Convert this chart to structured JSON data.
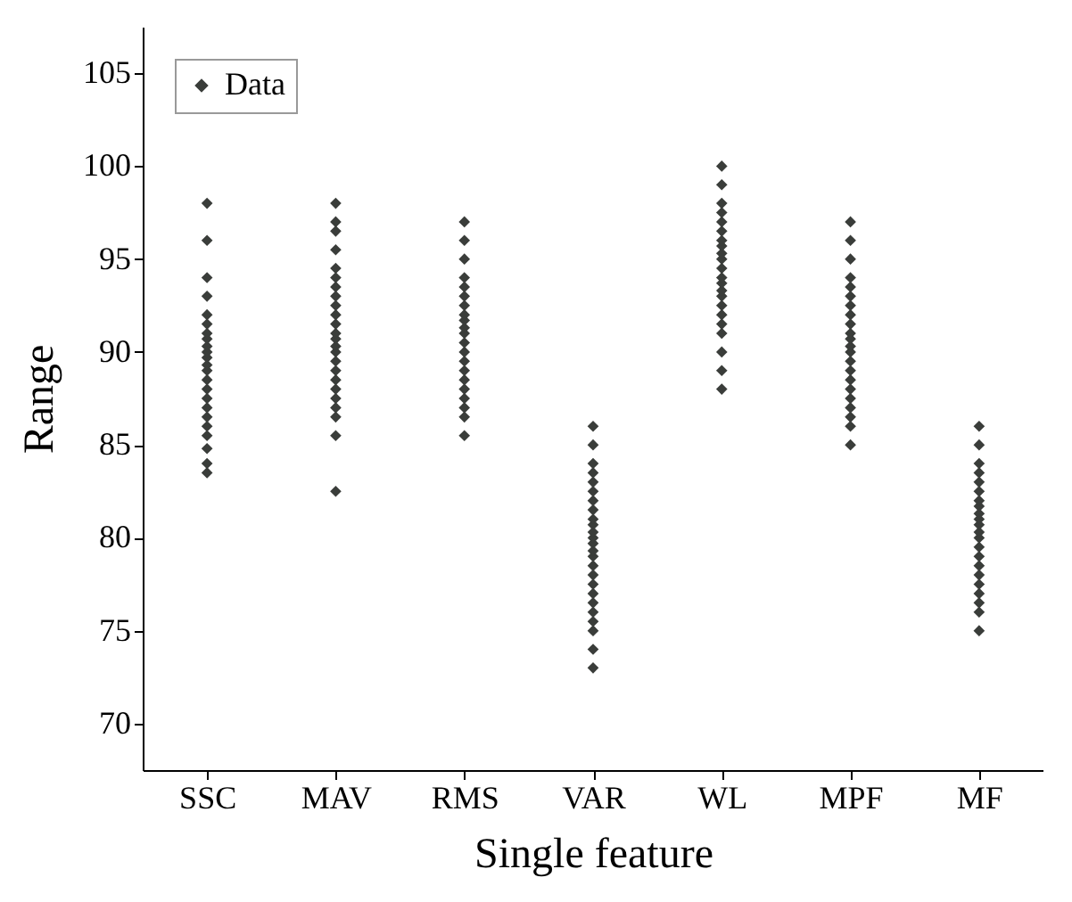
{
  "chart_data": {
    "type": "scatter",
    "xlabel": "Single feature",
    "ylabel": "Range",
    "categories": [
      "SSC",
      "MAV",
      "RMS",
      "VAR",
      "WL",
      "MPF",
      "MF"
    ],
    "ylim": [
      67.5,
      107.5
    ],
    "yticks": [
      70,
      75,
      80,
      85,
      90,
      95,
      100,
      105
    ],
    "legend": "top left",
    "marker": "diamond",
    "grid": false,
    "series": [
      {
        "name": "Data",
        "color": "#3a3d3a",
        "x": [
          "SSC",
          "SSC",
          "SSC",
          "SSC",
          "SSC",
          "SSC",
          "SSC",
          "SSC",
          "SSC",
          "SSC",
          "SSC",
          "SSC",
          "SSC",
          "SSC",
          "SSC",
          "SSC",
          "SSC",
          "SSC",
          "SSC",
          "SSC",
          "SSC",
          "SSC",
          "SSC",
          "MAV",
          "MAV",
          "MAV",
          "MAV",
          "MAV",
          "MAV",
          "MAV",
          "MAV",
          "MAV",
          "MAV",
          "MAV",
          "MAV",
          "MAV",
          "MAV",
          "MAV",
          "MAV",
          "MAV",
          "MAV",
          "MAV",
          "MAV",
          "MAV",
          "MAV",
          "MAV",
          "MAV",
          "RMS",
          "RMS",
          "RMS",
          "RMS",
          "RMS",
          "RMS",
          "RMS",
          "RMS",
          "RMS",
          "RMS",
          "RMS",
          "RMS",
          "RMS",
          "RMS",
          "RMS",
          "RMS",
          "RMS",
          "RMS",
          "RMS",
          "RMS",
          "RMS",
          "VAR",
          "VAR",
          "VAR",
          "VAR",
          "VAR",
          "VAR",
          "VAR",
          "VAR",
          "VAR",
          "VAR",
          "VAR",
          "VAR",
          "VAR",
          "VAR",
          "VAR",
          "VAR",
          "VAR",
          "VAR",
          "VAR",
          "VAR",
          "VAR",
          "VAR",
          "VAR",
          "VAR",
          "VAR",
          "WL",
          "WL",
          "WL",
          "WL",
          "WL",
          "WL",
          "WL",
          "WL",
          "WL",
          "WL",
          "WL",
          "WL",
          "WL",
          "WL",
          "WL",
          "WL",
          "WL",
          "WL",
          "WL",
          "WL",
          "WL",
          "WL",
          "MPF",
          "MPF",
          "MPF",
          "MPF",
          "MPF",
          "MPF",
          "MPF",
          "MPF",
          "MPF",
          "MPF",
          "MPF",
          "MPF",
          "MPF",
          "MPF",
          "MPF",
          "MPF",
          "MPF",
          "MPF",
          "MPF",
          "MPF",
          "MPF",
          "MPF",
          "MF",
          "MF",
          "MF",
          "MF",
          "MF",
          "MF",
          "MF",
          "MF",
          "MF",
          "MF",
          "MF",
          "MF",
          "MF",
          "MF",
          "MF",
          "MF",
          "MF",
          "MF",
          "MF",
          "MF",
          "MF",
          "MF"
        ],
        "values": [
          83.5,
          84,
          84.8,
          85.5,
          86,
          86.5,
          87,
          87.5,
          88,
          88.5,
          89,
          89.3,
          89.7,
          90,
          90.3,
          90.7,
          91,
          91.5,
          92,
          93,
          94,
          96,
          98,
          82.5,
          85.5,
          86.5,
          87,
          87.5,
          88,
          88.5,
          89,
          89.5,
          90,
          90.3,
          90.7,
          91,
          91.5,
          92,
          92.5,
          93,
          93.5,
          94,
          94.5,
          95.5,
          96.5,
          97,
          98,
          85.5,
          86.5,
          87,
          87.5,
          88,
          88.5,
          89,
          89.5,
          90,
          90.5,
          91,
          91.3,
          91.7,
          92,
          92.5,
          93,
          93.5,
          94,
          95,
          96,
          97,
          73,
          74,
          75,
          75.5,
          76,
          76.5,
          77,
          77.5,
          78,
          78.5,
          79,
          79.3,
          79.7,
          80,
          80.3,
          80.7,
          81,
          81.5,
          82,
          82.5,
          83,
          83.5,
          84,
          85,
          86,
          88,
          89,
          90,
          91,
          91.5,
          92,
          92.5,
          93,
          93.3,
          93.7,
          94,
          94.5,
          95,
          95.3,
          95.7,
          96,
          96.5,
          97,
          97.5,
          98,
          99,
          100,
          85,
          86,
          86.5,
          87,
          87.5,
          88,
          88.5,
          89,
          89.5,
          90,
          90.3,
          90.7,
          91,
          91.5,
          92,
          92.5,
          93,
          93.5,
          94,
          95,
          96,
          97,
          75,
          76,
          76.5,
          77,
          77.5,
          78,
          78.5,
          79,
          79.5,
          80,
          80.3,
          80.7,
          81,
          81.3,
          81.7,
          82,
          82.5,
          83,
          83.5,
          84,
          85,
          86
        ]
      }
    ]
  }
}
